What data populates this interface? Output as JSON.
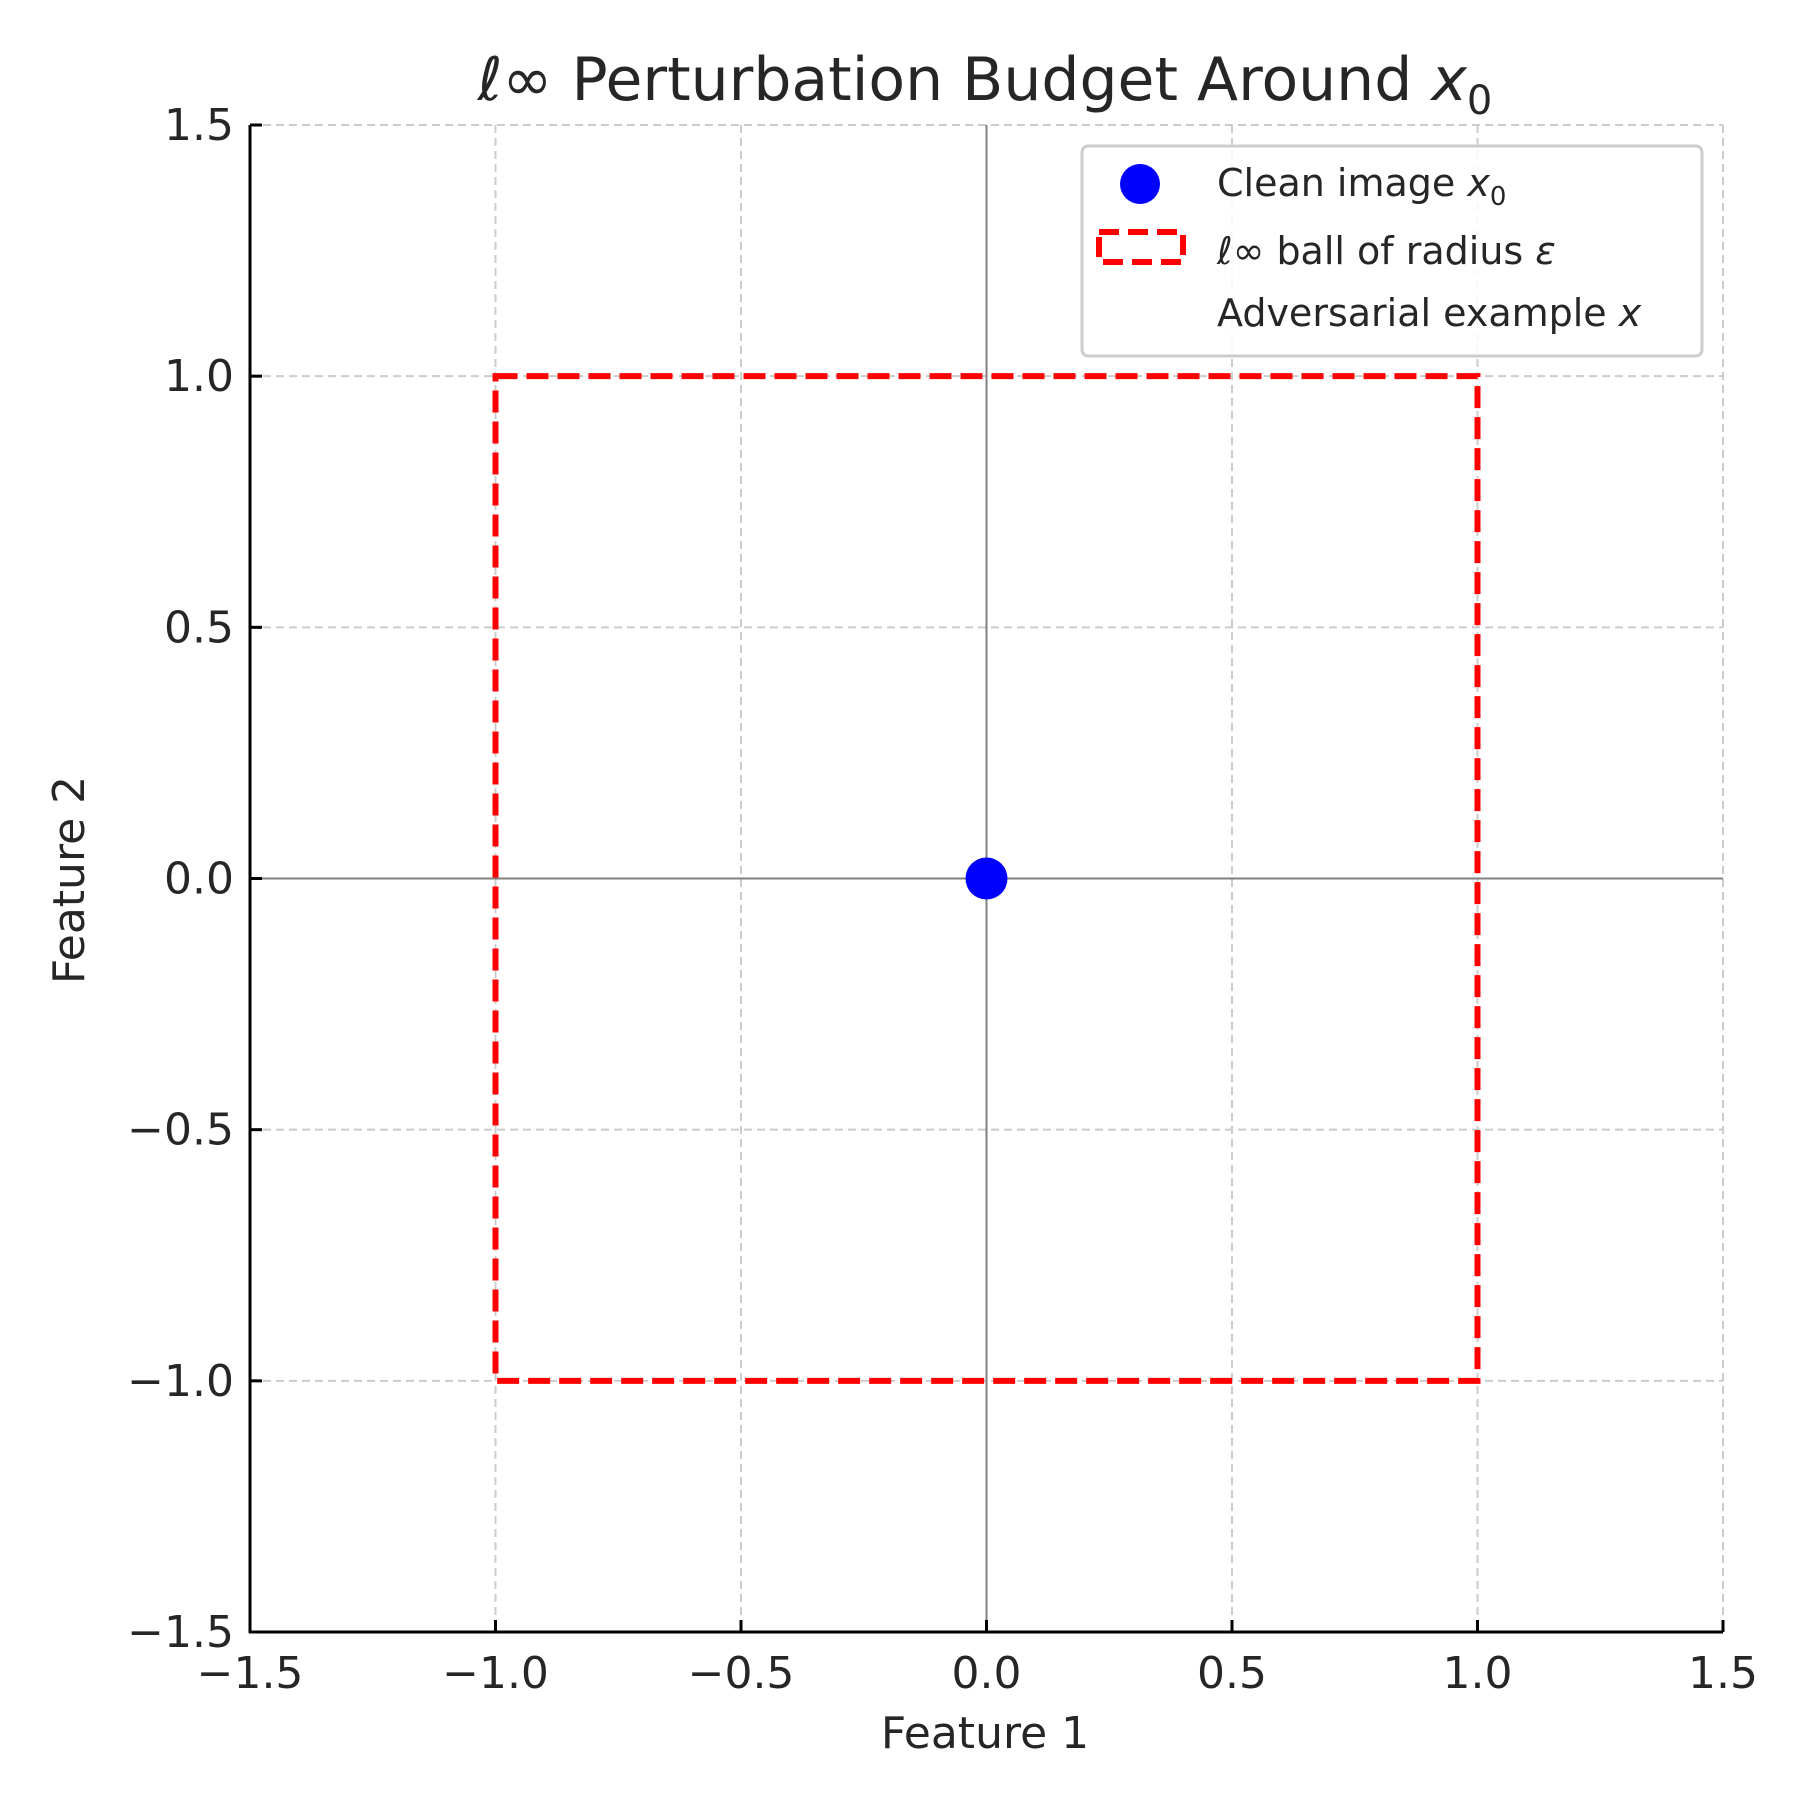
{
  "chart_data": {
    "type": "scatter",
    "title_prefix": "ℓ∞",
    "title_main": " Perturbation Budget Around ",
    "title_var": "x",
    "title_sub": "0",
    "xlabel": "Feature 1",
    "ylabel": "Feature 2",
    "xlim": [
      -1.5,
      1.5
    ],
    "ylim": [
      -1.5,
      1.5
    ],
    "xticks": [
      -1.5,
      -1.0,
      -0.5,
      0.0,
      0.5,
      1.0,
      1.5
    ],
    "yticks": [
      -1.5,
      -1.0,
      -0.5,
      0.0,
      0.5,
      1.0,
      1.5
    ],
    "xtick_labels": [
      "−1.5",
      "−1.0",
      "−0.5",
      "0.0",
      "0.5",
      "1.0",
      "1.5"
    ],
    "ytick_labels": [
      "−1.5",
      "−1.0",
      "−0.5",
      "0.0",
      "0.5",
      "1.0",
      "1.5"
    ],
    "grid": true,
    "axes_lines_at_zero": true,
    "points": [
      {
        "x": 0.0,
        "y": 0.0,
        "color": "#0000ff"
      }
    ],
    "box": {
      "xmin": -1.0,
      "xmax": 1.0,
      "ymin": -1.0,
      "ymax": 1.0,
      "color": "#ff0000",
      "style": "dashed"
    },
    "legend": {
      "placement": "top-right",
      "entries": [
        {
          "text": "Clean image ",
          "var": "x",
          "sub": "0",
          "marker": "dot",
          "color": "#0000ff"
        },
        {
          "prefix": "ℓ∞",
          "text": " ball of radius ",
          "var": "ε",
          "marker": "dashed-rect",
          "color": "#ff0000"
        },
        {
          "text": "Adversarial example ",
          "var": "x",
          "marker": "none"
        }
      ]
    }
  }
}
